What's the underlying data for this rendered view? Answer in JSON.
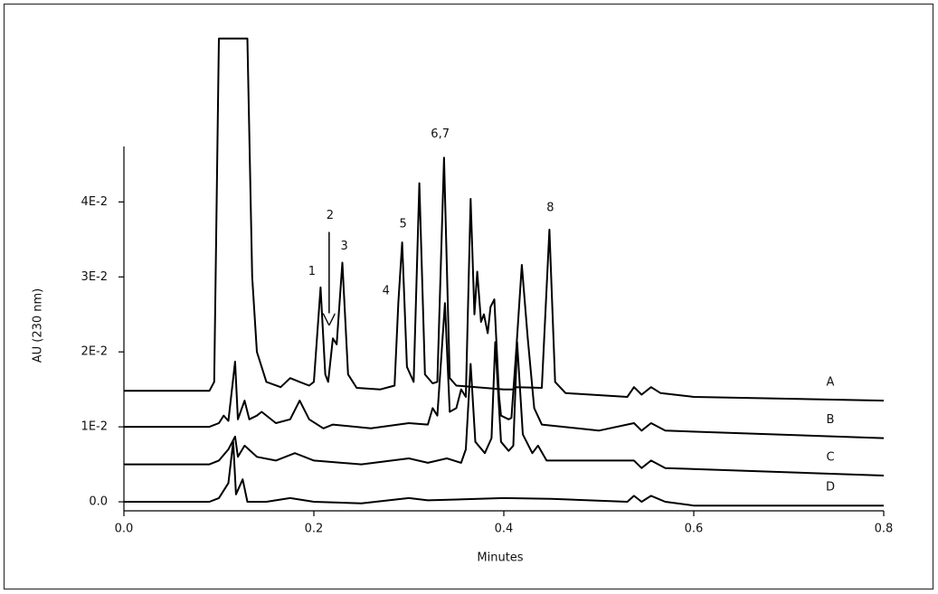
{
  "chart_data": {
    "type": "line",
    "x_label": "Minutes",
    "y_label": "AU (230 nm)",
    "xlim": [
      0,
      0.8
    ],
    "ylim": [
      -0.0012,
      0.0474
    ],
    "xticks": [
      {
        "value": 0,
        "label": "0.0"
      },
      0.2,
      0.4,
      0.6,
      0.8
    ],
    "yticks": [
      {
        "value": 0,
        "label": "0.0"
      },
      {
        "value": 0.01,
        "label": "1E-2"
      },
      {
        "value": 0.02,
        "label": "2E-2"
      },
      {
        "value": 0.03,
        "label": "3E-2"
      },
      {
        "value": 0.04,
        "label": "4E-2"
      }
    ],
    "series": [
      {
        "name": "A",
        "color": "#000000",
        "x": [
          0,
          0.09,
          0.095,
          0.1,
          0.13,
          0.135,
          0.14,
          0.15,
          0.165,
          0.175,
          0.185,
          0.195,
          0.2,
          0.207,
          0.212,
          0.215,
          0.22,
          0.224,
          0.23,
          0.236,
          0.245,
          0.27,
          0.285,
          0.289,
          0.293,
          0.298,
          0.305,
          0.311,
          0.317,
          0.325,
          0.33,
          0.337,
          0.343,
          0.35,
          0.4,
          0.41,
          0.413,
          0.44,
          0.448,
          0.454,
          0.465,
          0.53,
          0.537,
          0.545,
          0.555,
          0.565,
          0.6,
          0.8
        ],
        "values": [
          0.0148,
          0.0148,
          0.016,
          0.0618,
          0.0618,
          0.03,
          0.02,
          0.016,
          0.0153,
          0.0165,
          0.016,
          0.0155,
          0.016,
          0.0286,
          0.017,
          0.016,
          0.0218,
          0.021,
          0.0319,
          0.017,
          0.0152,
          0.015,
          0.0155,
          0.0266,
          0.0346,
          0.018,
          0.016,
          0.0425,
          0.017,
          0.0158,
          0.016,
          0.0459,
          0.0165,
          0.0155,
          0.015,
          0.015,
          0.0153,
          0.0152,
          0.0363,
          0.016,
          0.0145,
          0.014,
          0.0153,
          0.0143,
          0.0153,
          0.0145,
          0.014,
          0.0135
        ]
      },
      {
        "name": "B",
        "color": "#000000",
        "x": [
          0,
          0.09,
          0.1,
          0.105,
          0.11,
          0.117,
          0.12,
          0.127,
          0.132,
          0.14,
          0.145,
          0.16,
          0.175,
          0.185,
          0.195,
          0.21,
          0.22,
          0.26,
          0.3,
          0.32,
          0.325,
          0.33,
          0.338,
          0.343,
          0.35,
          0.355,
          0.36,
          0.365,
          0.369,
          0.372,
          0.376,
          0.379,
          0.383,
          0.386,
          0.39,
          0.395,
          0.397,
          0.405,
          0.408,
          0.413,
          0.419,
          0.425,
          0.432,
          0.44,
          0.5,
          0.537,
          0.545,
          0.555,
          0.57,
          0.8
        ],
        "values": [
          0.01,
          0.01,
          0.0105,
          0.0115,
          0.0108,
          0.0187,
          0.011,
          0.0135,
          0.011,
          0.0115,
          0.012,
          0.0105,
          0.011,
          0.0135,
          0.011,
          0.0098,
          0.0103,
          0.0098,
          0.0105,
          0.0103,
          0.0125,
          0.0115,
          0.0265,
          0.012,
          0.0125,
          0.015,
          0.014,
          0.0404,
          0.025,
          0.0307,
          0.024,
          0.025,
          0.0225,
          0.026,
          0.027,
          0.014,
          0.0115,
          0.011,
          0.0112,
          0.02,
          0.0316,
          0.022,
          0.0125,
          0.0103,
          0.0095,
          0.0105,
          0.0095,
          0.0105,
          0.0095,
          0.0085
        ]
      },
      {
        "name": "C",
        "color": "#000000",
        "x": [
          0,
          0.09,
          0.1,
          0.11,
          0.117,
          0.12,
          0.127,
          0.14,
          0.16,
          0.18,
          0.2,
          0.25,
          0.3,
          0.32,
          0.34,
          0.355,
          0.36,
          0.365,
          0.37,
          0.38,
          0.387,
          0.391,
          0.397,
          0.405,
          0.41,
          0.414,
          0.42,
          0.43,
          0.436,
          0.445,
          0.47,
          0.537,
          0.545,
          0.555,
          0.57,
          0.8
        ],
        "values": [
          0.005,
          0.005,
          0.0055,
          0.007,
          0.0087,
          0.006,
          0.0075,
          0.006,
          0.0055,
          0.0065,
          0.0055,
          0.005,
          0.0058,
          0.0052,
          0.0058,
          0.0052,
          0.007,
          0.0184,
          0.008,
          0.0065,
          0.0085,
          0.0213,
          0.008,
          0.0068,
          0.0075,
          0.0213,
          0.009,
          0.0065,
          0.0075,
          0.0055,
          0.0055,
          0.0055,
          0.0045,
          0.0055,
          0.0045,
          0.0035
        ]
      },
      {
        "name": "D",
        "color": "#000000",
        "x": [
          0,
          0.09,
          0.1,
          0.105,
          0.11,
          0.115,
          0.118,
          0.125,
          0.13,
          0.15,
          0.175,
          0.2,
          0.25,
          0.3,
          0.32,
          0.4,
          0.45,
          0.53,
          0.537,
          0.545,
          0.555,
          0.57,
          0.6,
          0.8
        ],
        "values": [
          0,
          0,
          0.0005,
          0.0015,
          0.0025,
          0.008,
          0.001,
          0.003,
          0,
          0,
          0.0005,
          0,
          -0.0002,
          0.0005,
          0.0002,
          0.0005,
          0.0004,
          0,
          0.0008,
          0,
          0.0008,
          0,
          -0.0005,
          -0.0005
        ]
      }
    ],
    "annotations": [
      {
        "text": "1",
        "x": 0.198,
        "y": 0.0307
      },
      {
        "text": "2",
        "x": 0.217,
        "y": 0.0382,
        "arrow_y": [
          0.036,
          0.0237
        ]
      },
      {
        "text": "3",
        "x": 0.232,
        "y": 0.0341
      },
      {
        "text": "4",
        "x": 0.276,
        "y": 0.0281
      },
      {
        "text": "5",
        "x": 0.294,
        "y": 0.037
      },
      {
        "text": "6,7",
        "x": 0.333,
        "y": 0.049
      },
      {
        "text": "8",
        "x": 0.449,
        "y": 0.0392
      }
    ]
  }
}
